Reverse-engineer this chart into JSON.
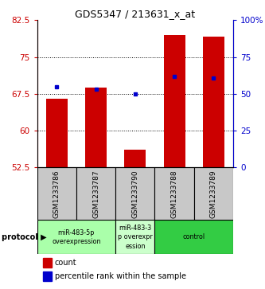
{
  "title": "GDS5347 / 213631_x_at",
  "samples": [
    "GSM1233786",
    "GSM1233787",
    "GSM1233790",
    "GSM1233788",
    "GSM1233789"
  ],
  "bar_values": [
    66.5,
    68.8,
    56.2,
    79.5,
    79.2
  ],
  "percentile_ranks": [
    55,
    53,
    50,
    62,
    61
  ],
  "ylim": [
    52.5,
    82.5
  ],
  "yticks_left": [
    52.5,
    60.0,
    67.5,
    75.0,
    82.5
  ],
  "ytick_labels_left": [
    "52.5",
    "60",
    "67.5",
    "75",
    "82.5"
  ],
  "yticks_right": [
    0,
    25,
    50,
    75,
    100
  ],
  "ytick_labels_right": [
    "0",
    "25",
    "50",
    "75",
    "100%"
  ],
  "bar_color": "#cc0000",
  "dot_color": "#0000cc",
  "protocol_groups": [
    {
      "label": "miR-483-5p\noverexpression",
      "samples": [
        0,
        1
      ],
      "color": "#aaffaa"
    },
    {
      "label": "miR-483-3\np overexpr\nession",
      "samples": [
        2
      ],
      "color": "#ccffcc"
    },
    {
      "label": "control",
      "samples": [
        3,
        4
      ],
      "color": "#33cc44"
    }
  ],
  "legend_bar_label": "count",
  "legend_dot_label": "percentile rank within the sample",
  "protocol_label": "protocol"
}
